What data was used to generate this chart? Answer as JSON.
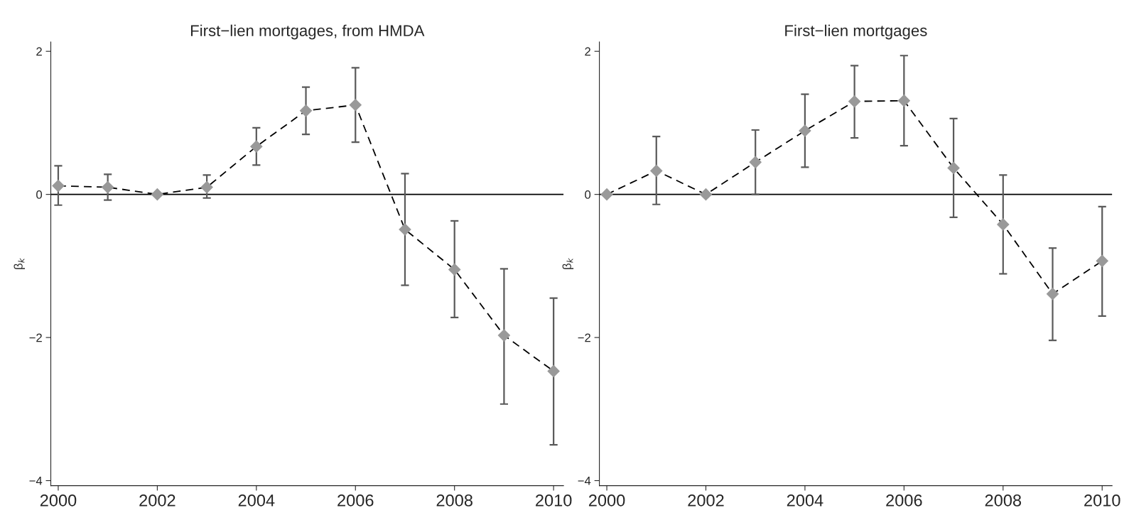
{
  "chart_data": [
    {
      "type": "line",
      "title": "First−lien mortgages, from HMDA",
      "ylabel": "β$_{k}$",
      "x": [
        2000,
        2001,
        2002,
        2003,
        2004,
        2005,
        2006,
        2007,
        2008,
        2009,
        2010
      ],
      "series": [
        {
          "color": "#999999",
          "values": [
            0.12,
            0.1,
            0,
            0.1,
            0.67,
            1.17,
            1.25,
            -0.49,
            -1.05,
            -1.97,
            -2.47
          ],
          "errors": [
            [
              -0.15,
              0.4
            ],
            [
              -0.08,
              0.28
            ],
            null,
            [
              -0.05,
              0.27
            ],
            [
              0.41,
              0.93
            ],
            [
              0.84,
              1.5
            ],
            [
              0.73,
              1.77
            ],
            [
              -1.27,
              0.29
            ],
            [
              -1.72,
              -0.37
            ],
            [
              -2.93,
              -1.04
            ],
            [
              -3.5,
              -1.45
            ]
          ]
        }
      ],
      "marker": "diamond",
      "line_style": "dashed",
      "grid": false,
      "legend": false,
      "xlim": [
        1999.85,
        2010.2
      ],
      "ylim": [
        -4.07,
        2.13
      ],
      "xticks": [
        2000,
        2002,
        2004,
        2006,
        2008,
        2010
      ],
      "yticks": [
        -4,
        -2,
        0,
        2
      ],
      "ref_lines": [
        {
          "axis": "y",
          "value": 0,
          "color": "#000000"
        }
      ]
    },
    {
      "type": "line",
      "title": "First−lien mortgages",
      "ylabel": "β$_{k}$",
      "x": [
        2000,
        2001,
        2002,
        2003,
        2004,
        2005,
        2006,
        2007,
        2008,
        2009,
        2010
      ],
      "series": [
        {
          "color": "#999999",
          "values": [
            0,
            0.33,
            0,
            0.45,
            0.89,
            1.3,
            1.31,
            0.37,
            -0.42,
            -1.39,
            -0.93
          ],
          "errors": [
            null,
            [
              -0.14,
              0.81
            ],
            null,
            [
              0,
              0.9
            ],
            [
              0.38,
              1.4
            ],
            [
              0.79,
              1.8
            ],
            [
              0.68,
              1.94
            ],
            [
              -0.32,
              1.06
            ],
            [
              -1.11,
              0.27
            ],
            [
              -2.04,
              -0.75
            ],
            [
              -1.7,
              -0.17
            ]
          ]
        }
      ],
      "marker": "diamond",
      "line_style": "dashed",
      "grid": false,
      "legend": false,
      "xlim": [
        1999.85,
        2010.2
      ],
      "ylim": [
        -4.07,
        2.13
      ],
      "xticks": [
        2000,
        2002,
        2004,
        2006,
        2008,
        2010
      ],
      "yticks": [
        -4,
        -2,
        0,
        2
      ],
      "ref_lines": [
        {
          "axis": "y",
          "value": 0,
          "color": "#000000"
        }
      ]
    }
  ]
}
